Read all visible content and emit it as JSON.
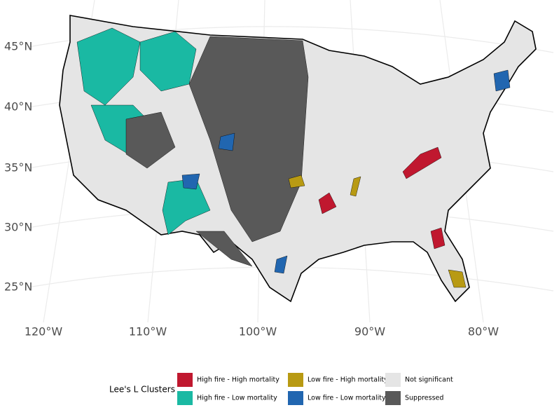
{
  "map": {
    "lat_labels": [
      "45°N",
      "40°N",
      "35°N",
      "30°N",
      "25°N"
    ],
    "lon_labels": [
      "120°W",
      "110°W",
      "100°W",
      "90°W",
      "80°W"
    ]
  },
  "legend": {
    "title": "Lee's L Clusters",
    "items": [
      {
        "label": "High fire - High mortality",
        "color": "#c0182f"
      },
      {
        "label": "High fire - Low mortality",
        "color": "#1ab9a3"
      },
      {
        "label": "Low fire - High mortality",
        "color": "#b89a13"
      },
      {
        "label": "Low fire - Low mortality",
        "color": "#2166b0"
      },
      {
        "label": "Not significant",
        "color": "#e5e5e5"
      },
      {
        "label": "Suppressed",
        "color": "#595959"
      }
    ]
  }
}
